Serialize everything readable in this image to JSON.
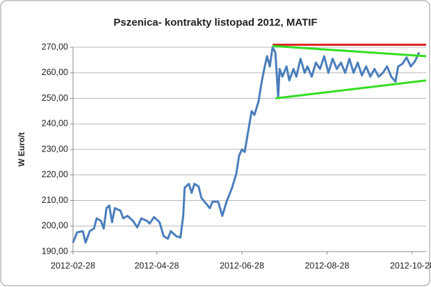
{
  "chart_data": {
    "type": "line",
    "title": "Pszenica- kontrakty listopad 2012, MATIF",
    "ylabel": "W Euro/t",
    "x": [
      "2012-02-28",
      "2012-03-02",
      "2012-03-06",
      "2012-03-08",
      "2012-03-11",
      "2012-03-14",
      "2012-03-16",
      "2012-03-19",
      "2012-03-21",
      "2012-03-23",
      "2012-03-25",
      "2012-03-27",
      "2012-03-29",
      "2012-04-02",
      "2012-04-04",
      "2012-04-07",
      "2012-04-11",
      "2012-04-14",
      "2012-04-17",
      "2012-04-21",
      "2012-04-23",
      "2012-04-26",
      "2012-04-30",
      "2012-05-03",
      "2012-05-06",
      "2012-05-08",
      "2012-05-12",
      "2012-05-15",
      "2012-05-17",
      "2012-05-18",
      "2012-05-21",
      "2012-05-23",
      "2012-05-25",
      "2012-05-28",
      "2012-05-30",
      "2012-06-02",
      "2012-06-05",
      "2012-06-07",
      "2012-06-11",
      "2012-06-14",
      "2012-06-17",
      "2012-06-21",
      "2012-06-24",
      "2012-06-26",
      "2012-06-28",
      "2012-06-30",
      "2012-07-02",
      "2012-07-05",
      "2012-07-07",
      "2012-07-10",
      "2012-07-12",
      "2012-07-14",
      "2012-07-16",
      "2012-07-18",
      "2012-07-20",
      "2012-07-22",
      "2012-07-24",
      "2012-07-25",
      "2012-07-27",
      "2012-07-30",
      "2012-08-01",
      "2012-08-04",
      "2012-08-06",
      "2012-08-09",
      "2012-08-12",
      "2012-08-14",
      "2012-08-17",
      "2012-08-20",
      "2012-08-23",
      "2012-08-26",
      "2012-08-29",
      "2012-09-01",
      "2012-09-04",
      "2012-09-07",
      "2012-09-10",
      "2012-09-13",
      "2012-09-16",
      "2012-09-19",
      "2012-09-22",
      "2012-09-25",
      "2012-09-28",
      "2012-10-01",
      "2012-10-04",
      "2012-10-07",
      "2012-10-10",
      "2012-10-13",
      "2012-10-16",
      "2012-10-18",
      "2012-10-21",
      "2012-10-24",
      "2012-10-27",
      "2012-10-30",
      "2012-11-02"
    ],
    "series": [
      {
        "color": "#4a7ebb",
        "values": [
          193.5,
          197.5,
          198,
          193.5,
          198,
          199,
          203,
          202,
          199,
          207,
          208,
          201.5,
          207,
          206,
          203,
          204,
          202,
          199.5,
          203,
          202,
          201,
          203.5,
          201.5,
          196,
          195,
          198,
          196,
          195.5,
          204,
          215,
          216.5,
          213,
          216.5,
          215.5,
          211,
          209,
          207,
          209.5,
          209.5,
          204,
          209.5,
          215,
          220.5,
          227.5,
          230,
          229,
          235.5,
          245,
          243.5,
          249,
          256,
          261.5,
          266.5,
          262.5,
          270,
          268,
          250.5,
          261.5,
          258.5,
          262.5,
          257,
          261.5,
          258.5,
          265.5,
          260,
          262.5,
          258.5,
          264,
          261.5,
          266.5,
          260,
          265.5,
          261.5,
          264,
          260,
          265.5,
          260,
          264,
          259,
          262.5,
          258.5,
          261.5,
          258.5,
          260,
          262.5,
          258.5,
          256.5,
          262.5,
          263.5,
          266,
          262.5,
          264.5,
          268
        ]
      }
    ],
    "trend_lines": [
      {
        "color": "#e02020",
        "x": [
          "2012-07-20",
          "2012-11-07"
        ],
        "values": [
          271,
          271
        ]
      },
      {
        "color": "#33dd22",
        "x": [
          "2012-07-20",
          "2012-11-07"
        ],
        "values": [
          270.5,
          266.5
        ]
      },
      {
        "color": "#33dd22",
        "x": [
          "2012-07-22",
          "2012-11-07"
        ],
        "values": [
          250,
          257
        ]
      }
    ],
    "xlim": [
      "2012-02-28",
      "2012-11-07"
    ],
    "xticks": [
      "2012-02-28",
      "2012-04-28",
      "2012-06-28",
      "2012-08-28",
      "2012-10-28"
    ],
    "ylim": [
      190,
      270
    ],
    "yticks": [
      {
        "value": 190,
        "label": "190,00"
      },
      {
        "value": 200,
        "label": "200,00"
      },
      {
        "value": 210,
        "label": "210,00"
      },
      {
        "value": 220,
        "label": "220,00"
      },
      {
        "value": 230,
        "label": "230,00"
      },
      {
        "value": 240,
        "label": "240,00"
      },
      {
        "value": 250,
        "label": "250,00"
      },
      {
        "value": 260,
        "label": "260,00"
      },
      {
        "value": 270,
        "label": "270,00"
      }
    ],
    "grid": true
  }
}
